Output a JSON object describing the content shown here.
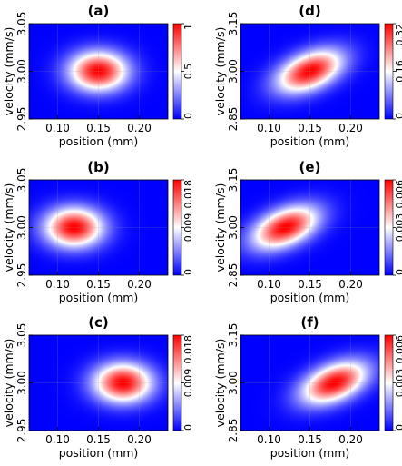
{
  "colors": {
    "low": "#0000ff",
    "mid": "#ffffff",
    "high": "#ff0000"
  },
  "chart_data": [
    {
      "type": "heatmap",
      "title": "(a)",
      "xlabel": "position  (mm)",
      "ylabel": "velocity  (mm/s)",
      "xlim": [
        0.065,
        0.235
      ],
      "ylim": [
        2.95,
        3.05
      ],
      "xticks": [
        "0.10",
        "0.15",
        "0.20"
      ],
      "xtick_values": [
        0.1,
        0.15,
        0.2
      ],
      "yticks": [
        "2.95",
        "3.00",
        "3.05"
      ],
      "ytick_values": [
        2.95,
        3.0,
        3.05
      ],
      "peak": {
        "x": 0.15,
        "y": 3.0
      },
      "sigma": {
        "x": 0.025,
        "y": 0.0145
      },
      "correlation": 0.0,
      "colorbar": {
        "min": 0,
        "max": 1,
        "ticks": [
          "0",
          "0.5",
          "1"
        ],
        "tick_values": [
          0,
          0.5,
          1
        ]
      }
    },
    {
      "type": "heatmap",
      "title": "(d)",
      "xlabel": "position  (mm)",
      "ylabel": "velocity  (mm/s)",
      "xlim": [
        0.065,
        0.235
      ],
      "ylim": [
        2.85,
        3.15
      ],
      "xticks": [
        "0.10",
        "0.15",
        "0.20"
      ],
      "xtick_values": [
        0.1,
        0.15,
        0.2
      ],
      "yticks": [
        "2.85",
        "3.00",
        "3.15"
      ],
      "ytick_values": [
        2.85,
        3.0,
        3.15
      ],
      "peak": {
        "x": 0.15,
        "y": 3.0
      },
      "sigma": {
        "x": 0.028,
        "y": 0.047
      },
      "correlation": 0.45,
      "colorbar": {
        "min": 0,
        "max": 0.32,
        "ticks": [
          "0",
          "0.16",
          "0.32"
        ],
        "tick_values": [
          0,
          0.16,
          0.32
        ]
      }
    },
    {
      "type": "heatmap",
      "title": "(b)",
      "xlabel": "position  (mm)",
      "ylabel": "velocity  (mm/s)",
      "xlim": [
        0.065,
        0.235
      ],
      "ylim": [
        2.95,
        3.05
      ],
      "xticks": [
        "0.10",
        "0.15",
        "0.20"
      ],
      "xtick_values": [
        0.1,
        0.15,
        0.2
      ],
      "yticks": [
        "2.95",
        "3.00",
        "3.05"
      ],
      "ytick_values": [
        2.95,
        3.0,
        3.05
      ],
      "peak": {
        "x": 0.12,
        "y": 3.0
      },
      "sigma": {
        "x": 0.025,
        "y": 0.0145
      },
      "correlation": 0.0,
      "colorbar": {
        "min": 0,
        "max": 0.018,
        "ticks": [
          "0",
          "0.009",
          "0.018"
        ],
        "tick_values": [
          0,
          0.009,
          0.018
        ]
      }
    },
    {
      "type": "heatmap",
      "title": "(e)",
      "xlabel": "position  (mm)",
      "ylabel": "velocity  (mm/s)",
      "xlim": [
        0.065,
        0.235
      ],
      "ylim": [
        2.85,
        3.15
      ],
      "xticks": [
        "0.10",
        "0.15",
        "0.20"
      ],
      "xtick_values": [
        0.1,
        0.15,
        0.2
      ],
      "yticks": [
        "2.85",
        "3.00",
        "3.15"
      ],
      "ytick_values": [
        2.85,
        3.0,
        3.15
      ],
      "peak": {
        "x": 0.12,
        "y": 3.0
      },
      "sigma": {
        "x": 0.028,
        "y": 0.047
      },
      "correlation": 0.45,
      "colorbar": {
        "min": 0,
        "max": 0.006,
        "ticks": [
          "0",
          "0.003",
          "0.006"
        ],
        "tick_values": [
          0,
          0.003,
          0.006
        ]
      }
    },
    {
      "type": "heatmap",
      "title": "(c)",
      "xlabel": "position  (mm)",
      "ylabel": "velocity  (mm/s)",
      "xlim": [
        0.065,
        0.235
      ],
      "ylim": [
        2.95,
        3.05
      ],
      "xticks": [
        "0.10",
        "0.15",
        "0.20"
      ],
      "xtick_values": [
        0.1,
        0.15,
        0.2
      ],
      "yticks": [
        "2.95",
        "3.00",
        "3.05"
      ],
      "ytick_values": [
        2.95,
        3.0,
        3.05
      ],
      "peak": {
        "x": 0.18,
        "y": 3.0
      },
      "sigma": {
        "x": 0.025,
        "y": 0.0145
      },
      "correlation": 0.0,
      "colorbar": {
        "min": 0,
        "max": 0.018,
        "ticks": [
          "0",
          "0.009",
          "0.018"
        ],
        "tick_values": [
          0,
          0.009,
          0.018
        ]
      }
    },
    {
      "type": "heatmap",
      "title": "(f)",
      "xlabel": "position  (mm)",
      "ylabel": "velocity  (mm/s)",
      "xlim": [
        0.065,
        0.235
      ],
      "ylim": [
        2.85,
        3.15
      ],
      "xticks": [
        "0.10",
        "0.15",
        "0.20"
      ],
      "xtick_values": [
        0.1,
        0.15,
        0.2
      ],
      "yticks": [
        "2.85",
        "3.00",
        "3.15"
      ],
      "ytick_values": [
        2.85,
        3.0,
        3.15
      ],
      "peak": {
        "x": 0.18,
        "y": 3.0
      },
      "sigma": {
        "x": 0.028,
        "y": 0.047
      },
      "correlation": 0.45,
      "colorbar": {
        "min": 0,
        "max": 0.006,
        "ticks": [
          "0",
          "0.003",
          "0.006"
        ],
        "tick_values": [
          0,
          0.003,
          0.006
        ]
      }
    }
  ]
}
